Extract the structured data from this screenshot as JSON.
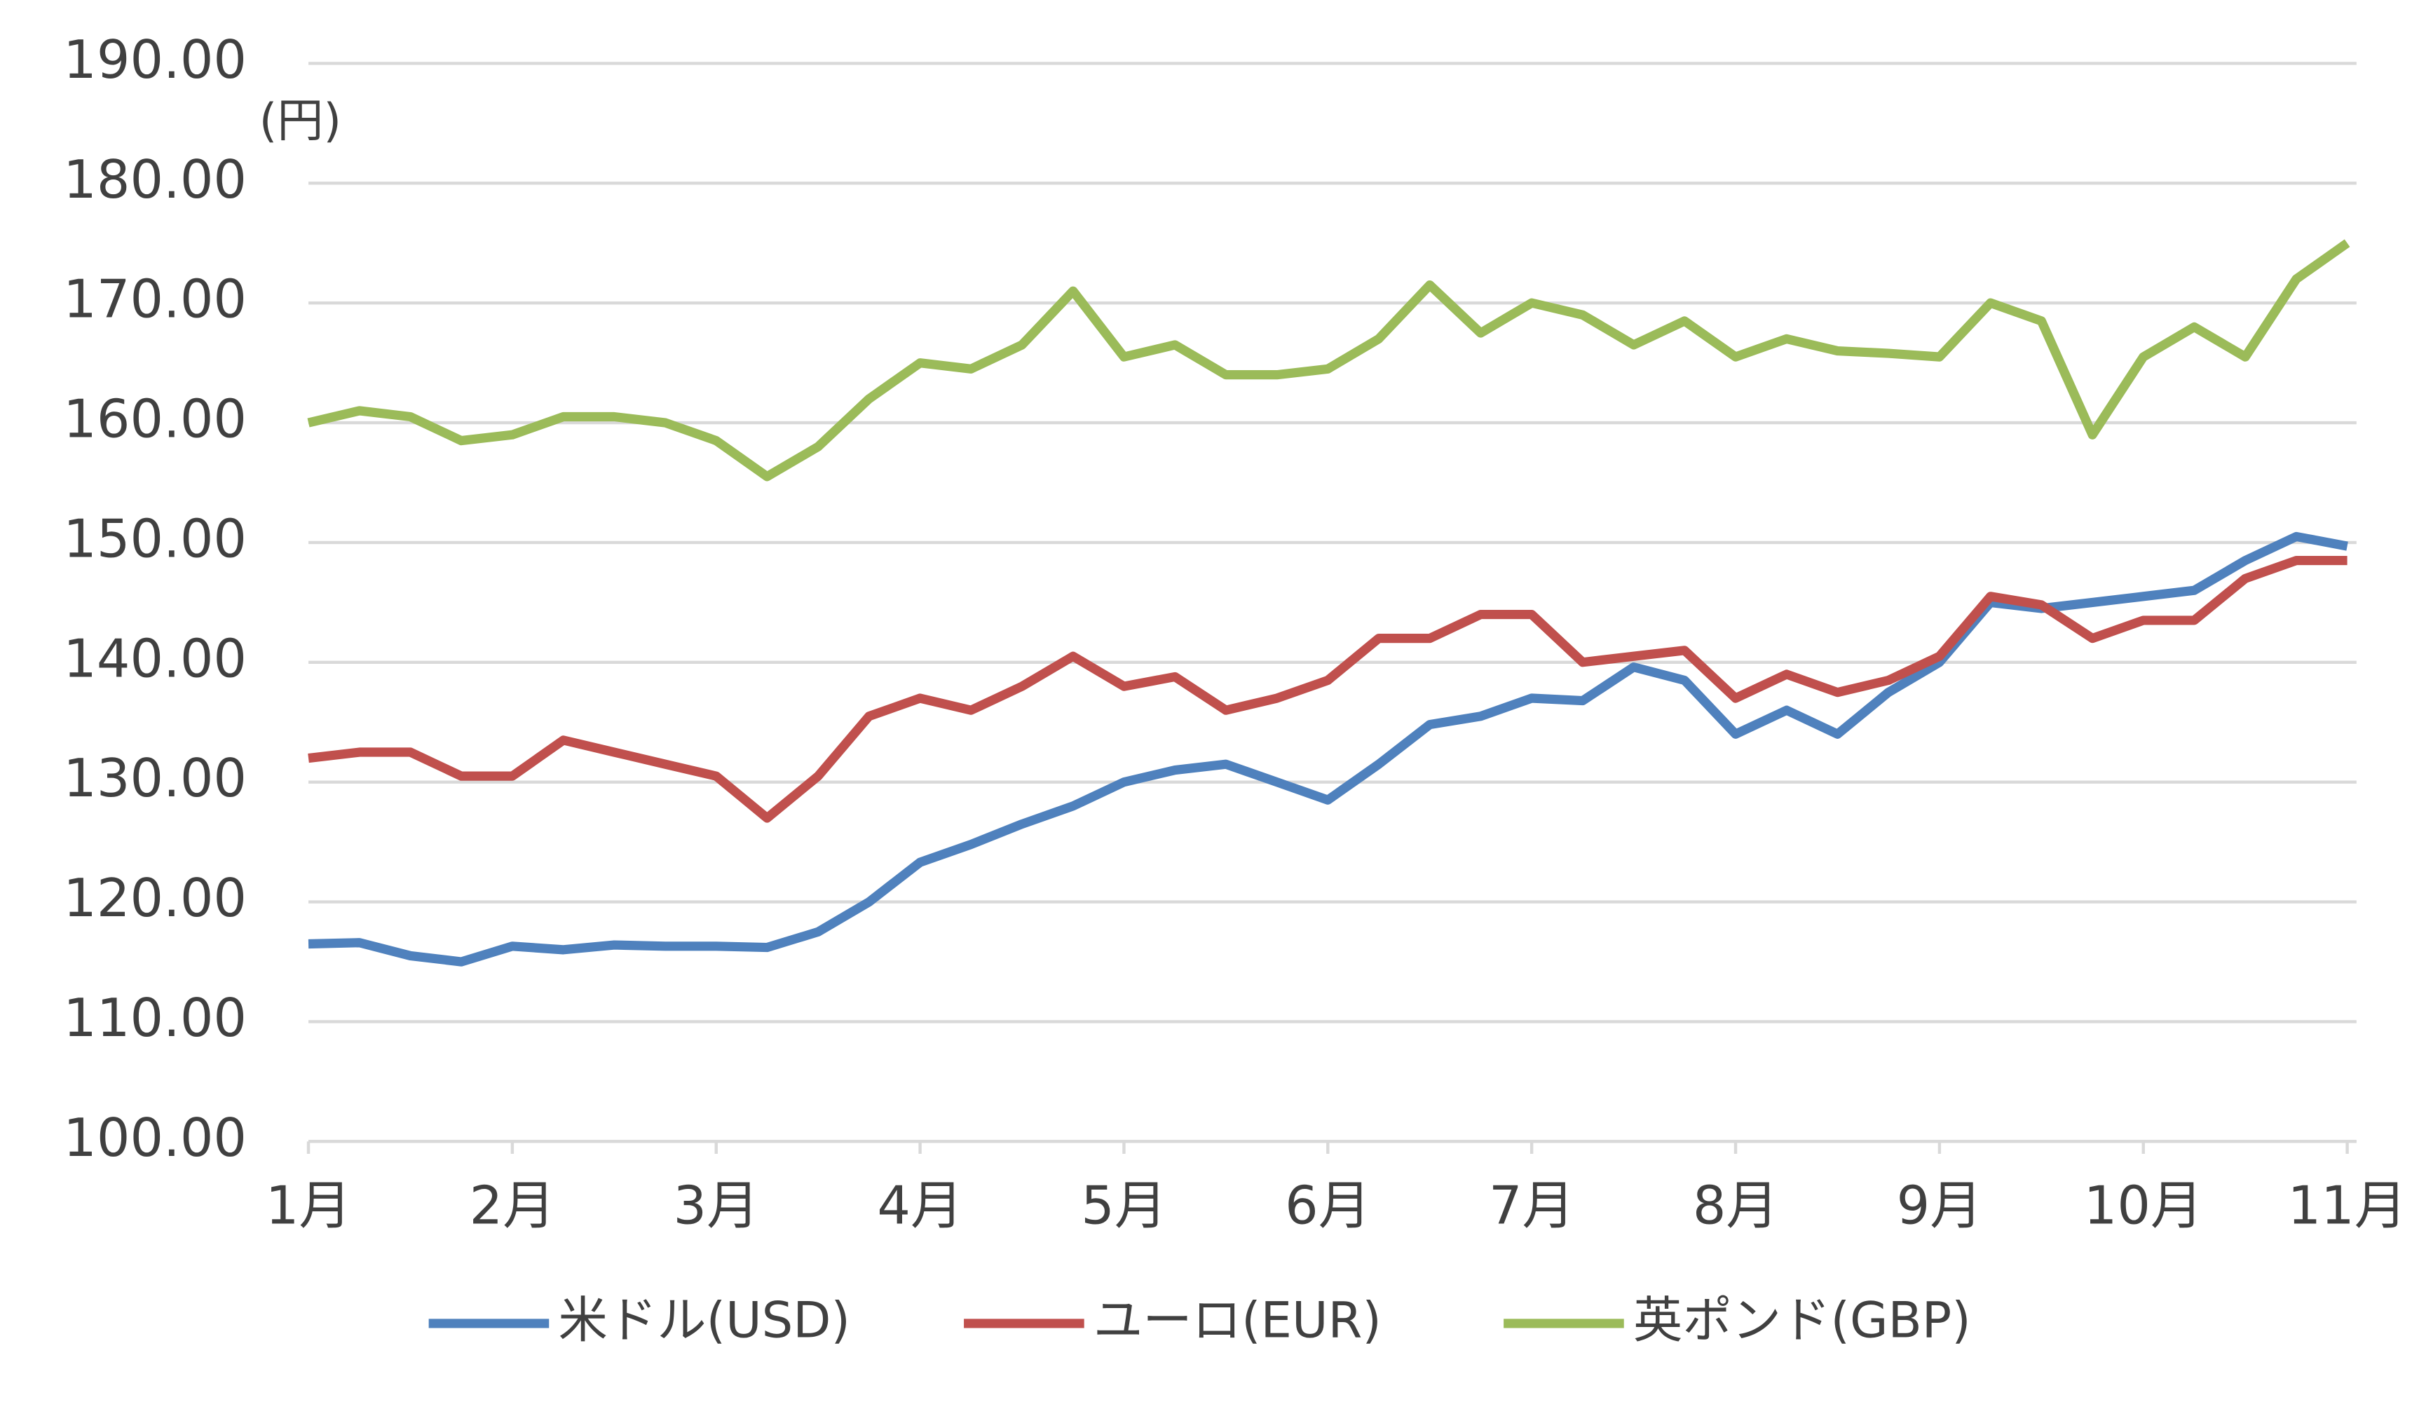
{
  "chart_data": {
    "type": "line",
    "unit_label": "(円)",
    "categories": [
      "1月",
      null,
      null,
      null,
      "2月",
      null,
      null,
      null,
      "3月",
      null,
      null,
      null,
      "4月",
      null,
      null,
      null,
      "5月",
      null,
      null,
      null,
      "6月",
      null,
      null,
      null,
      "7月",
      null,
      null,
      null,
      "8月",
      null,
      null,
      null,
      "9月",
      null,
      null,
      null,
      "10月",
      null,
      null,
      null,
      "11月"
    ],
    "series": [
      {
        "name": "米ドル(USD)",
        "color": "#4f81bd",
        "values": [
          116.5,
          116.6,
          115.5,
          115.0,
          116.3,
          116.0,
          116.4,
          116.3,
          116.3,
          116.2,
          117.5,
          120.0,
          123.3,
          124.8,
          126.5,
          128.0,
          130.0,
          131.0,
          131.5,
          130.0,
          128.5,
          131.5,
          134.8,
          135.5,
          137.0,
          136.8,
          139.6,
          138.5,
          134.0,
          136.0,
          134.0,
          137.5,
          140.0,
          145.0,
          144.5,
          145.0,
          145.5,
          146.0,
          148.5,
          150.5,
          149.7
        ]
      },
      {
        "name": "ユーロ(EUR)",
        "color": "#c0504d",
        "values": [
          132.0,
          132.5,
          132.5,
          130.5,
          130.5,
          133.5,
          132.5,
          131.5,
          130.5,
          127.0,
          130.5,
          135.5,
          137.0,
          136.0,
          138.0,
          140.5,
          138.0,
          138.8,
          136.0,
          137.0,
          138.5,
          142.0,
          142.0,
          144.0,
          144.0,
          140.0,
          140.5,
          141.0,
          137.0,
          139.0,
          137.5,
          138.5,
          140.5,
          145.5,
          144.8,
          142.0,
          143.5,
          143.5,
          147.0,
          148.5,
          148.5
        ]
      },
      {
        "name": "英ポンド(GBP)",
        "color": "#9bbb59",
        "values": [
          160.0,
          161.0,
          160.5,
          158.5,
          159.0,
          160.5,
          160.5,
          160.0,
          158.5,
          155.5,
          158.0,
          162.0,
          165.0,
          164.5,
          166.5,
          171.0,
          165.5,
          166.5,
          164.0,
          164.0,
          164.5,
          167.0,
          171.5,
          167.5,
          170.0,
          169.0,
          166.5,
          168.5,
          165.5,
          167.0,
          166.0,
          165.8,
          165.5,
          170.0,
          168.5,
          159.0,
          165.5,
          168.0,
          165.5,
          172.0,
          175.0
        ]
      }
    ],
    "ylim": [
      100,
      190
    ],
    "yticks": [
      {
        "value": 100,
        "label": "100.00"
      },
      {
        "value": 110,
        "label": "110.00"
      },
      {
        "value": 120,
        "label": "120.00"
      },
      {
        "value": 130,
        "label": "130.00"
      },
      {
        "value": 140,
        "label": "140.00"
      },
      {
        "value": 150,
        "label": "150.00"
      },
      {
        "value": 160,
        "label": "160.00"
      },
      {
        "value": 170,
        "label": "170.00"
      },
      {
        "value": 180,
        "label": "180.00"
      },
      {
        "value": 190,
        "label": "190.00"
      }
    ],
    "grid": true,
    "legend": "bottom"
  }
}
